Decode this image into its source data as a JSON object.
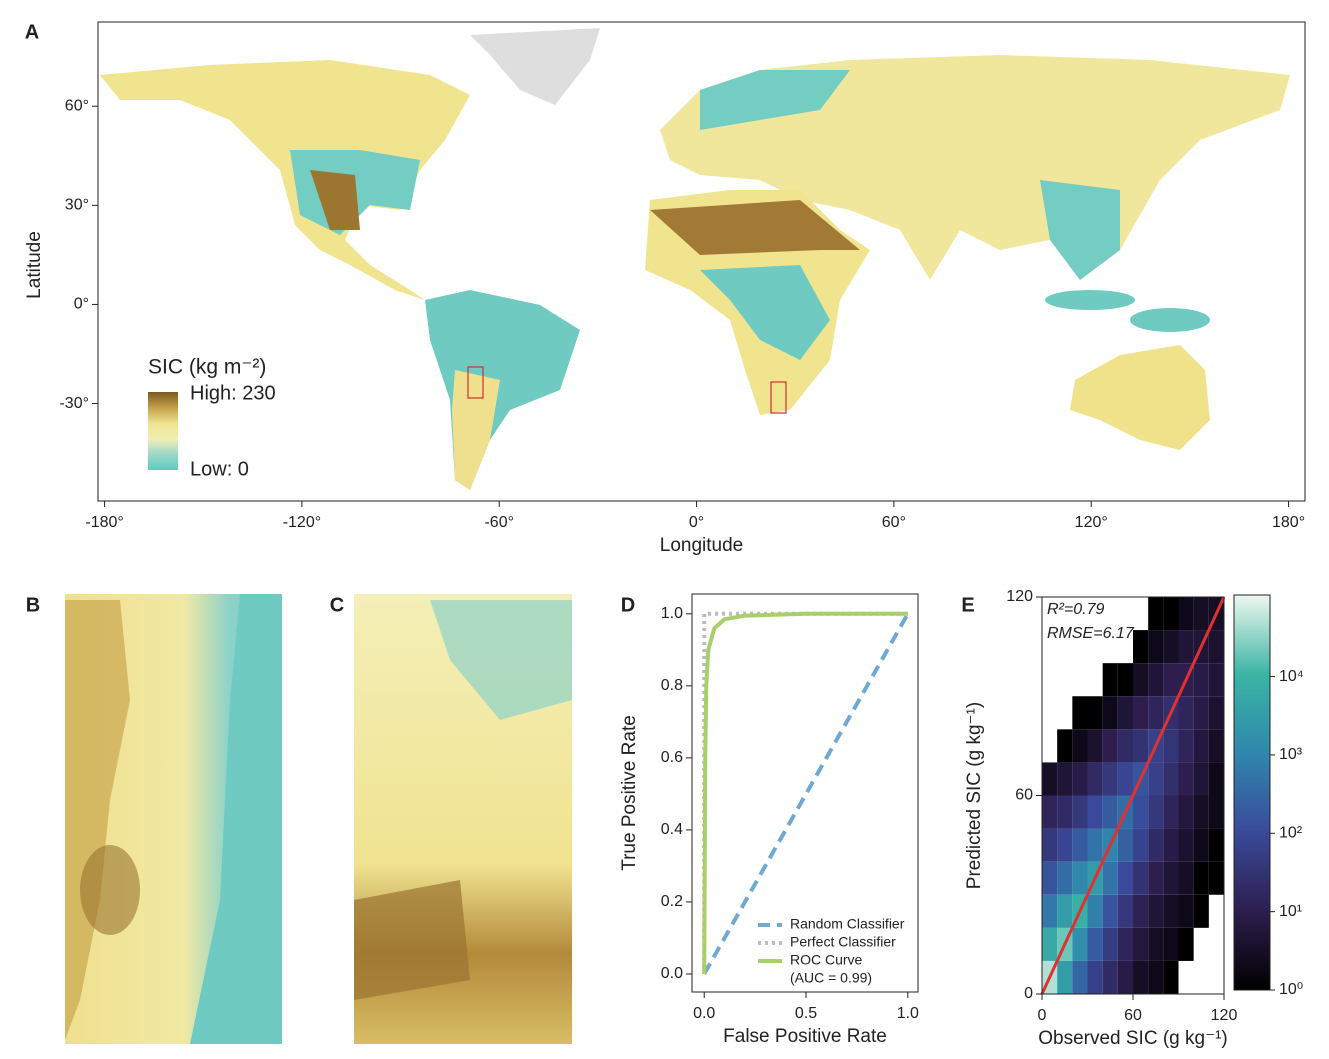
{
  "chart_data": [
    {
      "type": "map",
      "panel": "A",
      "xlabel": "Longitude",
      "ylabel": "Latitude",
      "xlim": [
        -182,
        185
      ],
      "ylim": [
        -59.5,
        85.5
      ],
      "xticks": [
        {
          "value": -180,
          "label": "-180°"
        },
        {
          "value": -120,
          "label": "-120°"
        },
        {
          "value": -60,
          "label": "-60°"
        },
        {
          "value": 0,
          "label": "0°"
        },
        {
          "value": 60,
          "label": "60°"
        },
        {
          "value": 120,
          "label": "120°"
        },
        {
          "value": 180,
          "label": "180°"
        }
      ],
      "yticks": [
        {
          "value": -30,
          "label": "-30°"
        },
        {
          "value": 0,
          "label": "0°"
        },
        {
          "value": 30,
          "label": "30°"
        },
        {
          "value": 60,
          "label": "60°"
        }
      ],
      "legend": {
        "title": "SIC (kg m⁻²)",
        "high_label": "High: 230",
        "low_label": "Low: 0",
        "colors": [
          "#7a5a1e",
          "#c2a04a",
          "#efe38e",
          "#f3efb4",
          "#9ad8c8",
          "#5ecbc0"
        ]
      }
    },
    {
      "type": "image",
      "panel": "B"
    },
    {
      "type": "image",
      "panel": "C"
    },
    {
      "type": "line",
      "panel": "D",
      "xlabel": "False Positive Rate",
      "ylabel": "True Positive Rate",
      "xlim": [
        -0.06,
        1.05
      ],
      "ylim": [
        -0.05,
        1.055
      ],
      "xticks": [
        {
          "value": 0,
          "label": "0.0"
        },
        {
          "value": 0.5,
          "label": "0.5"
        },
        {
          "value": 1,
          "label": "1.0"
        }
      ],
      "yticks": [
        {
          "value": 0,
          "label": "0.0"
        },
        {
          "value": 0.2,
          "label": "0.2"
        },
        {
          "value": 0.4,
          "label": "0.4"
        },
        {
          "value": 0.6,
          "label": "0.6"
        },
        {
          "value": 0.8,
          "label": "0.8"
        },
        {
          "value": 1,
          "label": "1.0"
        }
      ],
      "series": [
        {
          "name": "Random Classifier",
          "color": "#6fa8d0",
          "dash": "dashed",
          "x": [
            0,
            1
          ],
          "values": [
            0,
            1
          ]
        },
        {
          "name": "Perfect Classifier",
          "color": "#bbbbbb",
          "dash": "dotted",
          "x": [
            0,
            0,
            1
          ],
          "values": [
            0,
            1,
            1
          ]
        },
        {
          "name": "ROC Curve",
          "legend_note": "(AUC = 0.99)",
          "color": "#a8cf6a",
          "dash": "solid",
          "x": [
            0,
            0.005,
            0.01,
            0.02,
            0.05,
            0.1,
            0.2,
            0.5,
            1
          ],
          "values": [
            0,
            0.6,
            0.8,
            0.9,
            0.96,
            0.985,
            0.995,
            1,
            1
          ]
        }
      ]
    },
    {
      "type": "hist2d",
      "panel": "E",
      "xlabel": "Observed SIC (g kg⁻¹)",
      "ylabel": "Predicted SIC (g kg⁻¹)",
      "xlim": [
        0,
        120
      ],
      "ylim": [
        0,
        120
      ],
      "xticks": [
        0,
        60,
        120
      ],
      "yticks": [
        0,
        60,
        120
      ],
      "annotations": [
        "R²=0.79",
        "RMSE=6.17"
      ],
      "xbins": [
        0,
        10,
        20,
        30,
        40,
        50,
        60,
        70,
        80,
        90,
        100,
        110,
        120
      ],
      "ybins": [
        0,
        10,
        20,
        30,
        40,
        50,
        60,
        70,
        80,
        90,
        100,
        110,
        120
      ],
      "counts": [
        [
          50000,
          3000,
          300,
          60,
          20,
          8,
          3,
          2,
          1,
          0,
          0,
          0
        ],
        [
          6000,
          20000,
          1500,
          200,
          50,
          15,
          6,
          3,
          2,
          1,
          0,
          0
        ],
        [
          600,
          3000,
          8000,
          800,
          150,
          40,
          12,
          5,
          3,
          2,
          1,
          0
        ],
        [
          150,
          400,
          1200,
          3000,
          500,
          100,
          30,
          10,
          5,
          3,
          1,
          1
        ],
        [
          40,
          80,
          200,
          500,
          1000,
          250,
          70,
          20,
          8,
          4,
          2,
          1
        ],
        [
          15,
          20,
          40,
          100,
          200,
          400,
          120,
          40,
          15,
          6,
          3,
          2
        ],
        [
          3,
          5,
          8,
          20,
          40,
          80,
          150,
          60,
          25,
          10,
          5,
          2
        ],
        [
          0,
          1,
          2,
          4,
          10,
          20,
          30,
          60,
          35,
          15,
          6,
          3
        ],
        [
          0,
          0,
          1,
          1,
          2,
          5,
          10,
          15,
          25,
          15,
          8,
          4
        ],
        [
          0,
          0,
          0,
          0,
          1,
          1,
          3,
          5,
          10,
          10,
          8,
          5
        ],
        [
          0,
          0,
          0,
          0,
          0,
          0,
          1,
          2,
          3,
          5,
          5,
          4
        ],
        [
          0,
          0,
          0,
          0,
          0,
          0,
          0,
          1,
          1,
          2,
          3,
          3
        ]
      ],
      "fit": {
        "color": "#e03030",
        "x": [
          0,
          120
        ],
        "values": [
          0,
          120
        ]
      },
      "colorbar": {
        "log": true,
        "lim": [
          1,
          110000
        ],
        "colors": [
          "#000000",
          "#2d1e4f",
          "#3a4a9a",
          "#2f87ad",
          "#3bb5a5",
          "#eef8ee"
        ],
        "ticks": [
          {
            "value": 1,
            "label": "10⁰"
          },
          {
            "value": 10,
            "label": "10¹"
          },
          {
            "value": 100,
            "label": "10²"
          },
          {
            "value": 1000,
            "label": "10³"
          },
          {
            "value": 10000,
            "label": "10⁴"
          }
        ]
      }
    }
  ]
}
